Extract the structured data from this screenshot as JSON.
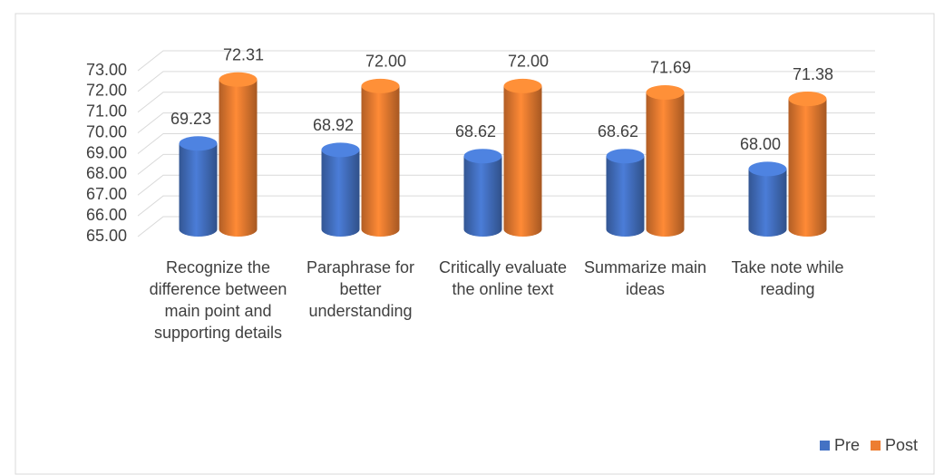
{
  "chart_data": {
    "type": "bar",
    "categories": [
      "Recognize the difference between main point and supporting details",
      "Paraphrase for better understanding",
      "Critically evaluate the online text",
      "Summarize main ideas",
      "Take note while reading"
    ],
    "series": [
      {
        "name": "Pre",
        "color": "#4472c4",
        "values": [
          69.23,
          68.92,
          68.62,
          68.62,
          68.0
        ],
        "value_labels": [
          "69.23",
          "68.92",
          "68.62",
          "68.62",
          "68.00"
        ]
      },
      {
        "name": "Post",
        "color": "#ed7d31",
        "values": [
          72.31,
          72.0,
          72.0,
          71.69,
          71.38
        ],
        "value_labels": [
          "72.31",
          "72.00",
          "72.00",
          "71.69",
          "71.38"
        ]
      }
    ],
    "ylim": [
      65,
      73
    ],
    "yticks": [
      {
        "value": 65,
        "label": "65.00"
      },
      {
        "value": 66,
        "label": "66.00"
      },
      {
        "value": 67,
        "label": "67.00"
      },
      {
        "value": 68,
        "label": "68.00"
      },
      {
        "value": 69,
        "label": "69.00"
      },
      {
        "value": 70,
        "label": "70.00"
      },
      {
        "value": 71,
        "label": "71.00"
      },
      {
        "value": 72,
        "label": "72.00"
      },
      {
        "value": 73,
        "label": "73.00"
      }
    ],
    "grid": true,
    "legend": "bottom-right"
  }
}
